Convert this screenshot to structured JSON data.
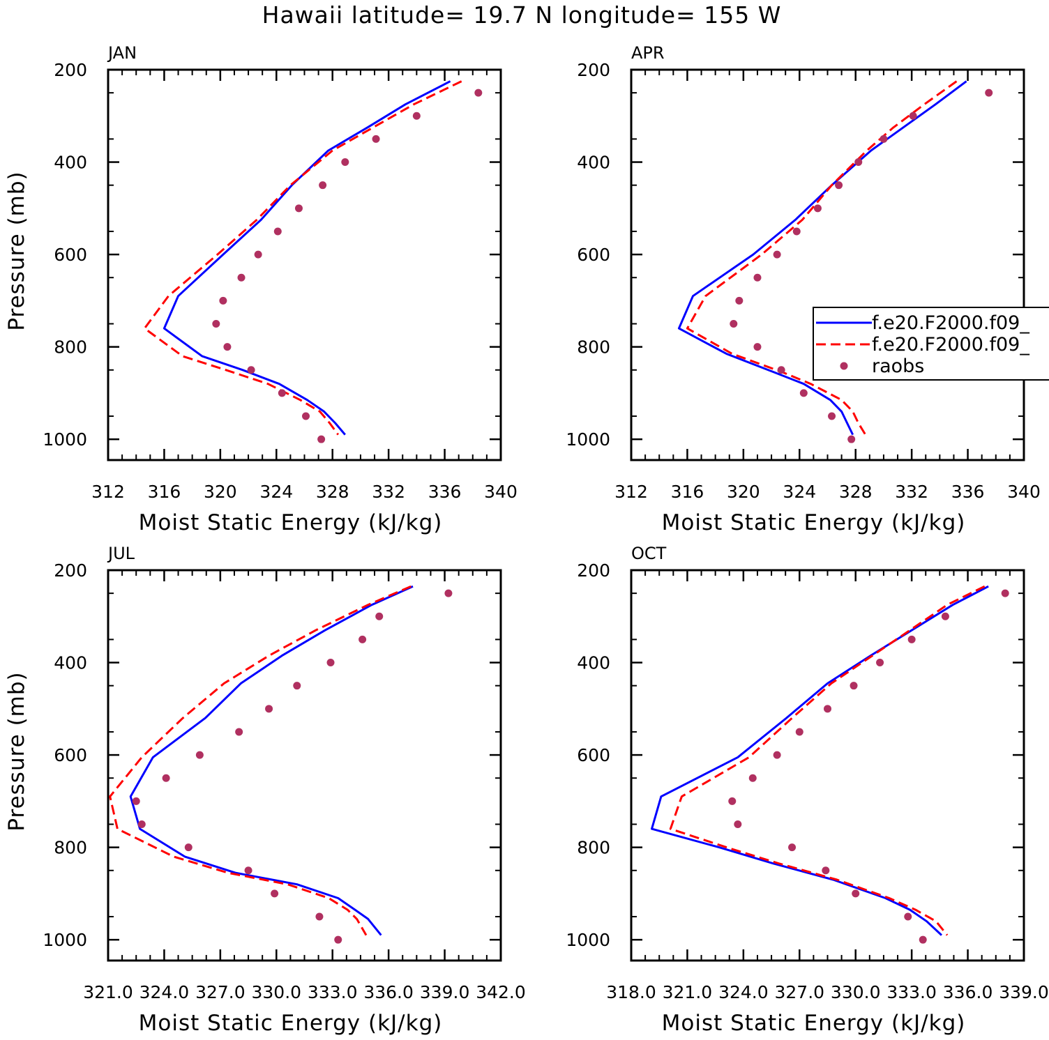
{
  "title": "Hawaii  latitude= 19.7 N longitude= 155 W",
  "legend": {
    "entries": [
      {
        "label": "f.e20.F2000.f09_",
        "style": "solid",
        "color": "#0000ff"
      },
      {
        "label": "f.e20.F2000.f09_",
        "style": "dashed",
        "color": "#ff0000"
      },
      {
        "label": "raobs",
        "style": "dot",
        "color": "#b03060"
      }
    ]
  },
  "chart_data": [
    {
      "type": "line",
      "panel": "JAN",
      "title": "JAN",
      "xlabel": "Moist Static Energy (kJ/kg)",
      "ylabel": "Pressure (mb)",
      "xlim": [
        312,
        340
      ],
      "ylim": [
        1000,
        200
      ],
      "xticks": [
        312,
        316,
        320,
        324,
        328,
        332,
        336,
        340
      ],
      "xtick_labels": [
        "312",
        "316",
        "320",
        "324",
        "328",
        "332",
        "336",
        "340"
      ],
      "yticks": [
        200,
        400,
        600,
        800,
        1000
      ],
      "ytick_labels": [
        "200",
        "400",
        "600",
        "800",
        "1000"
      ],
      "series": [
        {
          "name": "f.e20.F2000.f09_",
          "color": "#0000ff",
          "style": "solid",
          "x": [
            336.4,
            333.2,
            330.5,
            327.7,
            325.1,
            322.9,
            320.2,
            317.0,
            316.0,
            318.7,
            321.6,
            324.2,
            326.2,
            327.4,
            328.2,
            328.9
          ],
          "y": [
            225,
            275,
            325,
            375,
            450,
            525,
            600,
            690,
            760,
            820,
            850,
            880,
            915,
            940,
            965,
            990
          ]
        },
        {
          "name": "f.e20.F2000.f09_",
          "color": "#ff0000",
          "style": "dashed",
          "x": [
            337.2,
            333.8,
            330.9,
            328.0,
            325.0,
            322.6,
            319.8,
            316.3,
            314.6,
            317.3,
            320.4,
            323.4,
            325.7,
            327.1,
            327.8,
            328.4
          ],
          "y": [
            225,
            275,
            325,
            375,
            450,
            525,
            600,
            690,
            760,
            820,
            850,
            880,
            915,
            940,
            965,
            990
          ]
        },
        {
          "name": "raobs",
          "color": "#b03060",
          "style": "dots",
          "x": [
            338.4,
            334.0,
            331.1,
            328.9,
            327.3,
            325.6,
            324.1,
            322.7,
            321.5,
            320.2,
            319.7,
            320.5,
            322.2,
            324.4,
            326.1,
            327.2
          ],
          "y": [
            250,
            300,
            350,
            400,
            450,
            500,
            550,
            600,
            650,
            700,
            750,
            800,
            850,
            900,
            950,
            1000
          ]
        }
      ]
    },
    {
      "type": "line",
      "panel": "APR",
      "title": "APR",
      "xlabel": "Moist Static Energy (kJ/kg)",
      "ylabel": "",
      "xlim": [
        312,
        340
      ],
      "ylim": [
        1000,
        200
      ],
      "xticks": [
        312,
        316,
        320,
        324,
        328,
        332,
        336,
        340
      ],
      "xtick_labels": [
        "312",
        "316",
        "320",
        "324",
        "328",
        "332",
        "336",
        "340"
      ],
      "yticks": [
        200,
        400,
        600,
        800,
        1000
      ],
      "ytick_labels": [
        "200",
        "400",
        "600",
        "800",
        "1000"
      ],
      "series": [
        {
          "name": "f.e20.F2000.f09_",
          "color": "#0000ff",
          "style": "solid",
          "x": [
            335.9,
            333.7,
            331.4,
            329.1,
            326.3,
            323.7,
            320.7,
            316.4,
            315.4,
            318.8,
            322.2,
            324.3,
            326.2,
            327.0,
            327.4,
            327.8
          ],
          "y": [
            225,
            275,
            325,
            375,
            450,
            525,
            600,
            690,
            760,
            815,
            855,
            880,
            915,
            940,
            965,
            990
          ]
        },
        {
          "name": "f.e20.F2000.f09_",
          "color": "#ff0000",
          "style": "dashed",
          "x": [
            335.2,
            332.9,
            330.7,
            328.8,
            326.3,
            324.2,
            321.3,
            317.3,
            316.0,
            319.2,
            322.8,
            324.8,
            327.0,
            327.8,
            328.2,
            328.7
          ],
          "y": [
            225,
            275,
            325,
            375,
            450,
            525,
            600,
            690,
            760,
            815,
            855,
            880,
            915,
            940,
            965,
            990
          ]
        },
        {
          "name": "raobs",
          "color": "#b03060",
          "style": "dots",
          "x": [
            337.5,
            332.1,
            330.0,
            328.2,
            326.8,
            325.3,
            323.8,
            322.4,
            321.0,
            319.7,
            319.3,
            321.0,
            322.7,
            324.3,
            326.3,
            327.7
          ],
          "y": [
            250,
            300,
            350,
            400,
            450,
            500,
            550,
            600,
            650,
            700,
            750,
            800,
            850,
            900,
            950,
            1000
          ]
        }
      ]
    },
    {
      "type": "line",
      "panel": "JUL",
      "title": "JUL",
      "xlabel": "Moist Static Energy (kJ/kg)",
      "ylabel": "Pressure (mb)",
      "xlim": [
        321.0,
        342.0
      ],
      "ylim": [
        1000,
        200
      ],
      "xticks": [
        321.0,
        324.0,
        327.0,
        330.0,
        333.0,
        336.0,
        339.0,
        342.0
      ],
      "xtick_labels": [
        "321.0",
        "324.0",
        "327.0",
        "330.0",
        "333.0",
        "336.0",
        "339.0",
        "342.0"
      ],
      "yticks": [
        200,
        400,
        600,
        800,
        1000
      ],
      "ytick_labels": [
        "200",
        "400",
        "600",
        "800",
        "1000"
      ],
      "series": [
        {
          "name": "f.e20.F2000.f09_",
          "color": "#0000ff",
          "style": "solid",
          "x": [
            337.3,
            335.1,
            332.6,
            330.3,
            328.1,
            326.2,
            323.4,
            322.2,
            322.7,
            325.1,
            327.8,
            331.1,
            333.3,
            334.2,
            334.9,
            335.6
          ],
          "y": [
            235,
            275,
            330,
            385,
            445,
            520,
            605,
            690,
            760,
            820,
            855,
            880,
            910,
            935,
            955,
            990
          ]
        },
        {
          "name": "f.e20.F2000.f09_",
          "color": "#ff0000",
          "style": "dashed",
          "x": [
            337.2,
            334.9,
            332.1,
            329.6,
            327.2,
            325.0,
            322.8,
            321.1,
            321.5,
            324.5,
            327.4,
            330.6,
            332.8,
            333.8,
            334.3,
            334.8
          ],
          "y": [
            235,
            275,
            330,
            385,
            445,
            520,
            605,
            690,
            760,
            820,
            855,
            880,
            910,
            935,
            955,
            990
          ]
        },
        {
          "name": "raobs",
          "color": "#b03060",
          "style": "dots",
          "x": [
            339.2,
            335.5,
            334.6,
            332.9,
            331.1,
            329.6,
            328.0,
            325.9,
            324.1,
            322.5,
            322.8,
            325.3,
            328.5,
            329.9,
            332.3,
            333.3
          ],
          "y": [
            250,
            300,
            350,
            400,
            450,
            500,
            550,
            600,
            650,
            700,
            750,
            800,
            850,
            900,
            950,
            1000
          ]
        }
      ]
    },
    {
      "type": "line",
      "panel": "OCT",
      "title": "OCT",
      "xlabel": "Moist Static Energy (kJ/kg)",
      "ylabel": "",
      "xlim": [
        318.0,
        339.0
      ],
      "ylim": [
        1000,
        200
      ],
      "xticks": [
        318.0,
        321.0,
        324.0,
        327.0,
        330.0,
        333.0,
        336.0,
        339.0
      ],
      "xtick_labels": [
        "318.0",
        "321.0",
        "324.0",
        "327.0",
        "330.0",
        "333.0",
        "336.0",
        "339.0"
      ],
      "yticks": [
        200,
        400,
        600,
        800,
        1000
      ],
      "ytick_labels": [
        "200",
        "400",
        "600",
        "800",
        "1000"
      ],
      "series": [
        {
          "name": "f.e20.F2000.f09_",
          "color": "#0000ff",
          "style": "solid",
          "x": [
            337.1,
            335.2,
            333.0,
            330.8,
            328.5,
            326.3,
            323.7,
            319.6,
            319.1,
            322.7,
            325.6,
            328.8,
            331.6,
            332.9,
            333.8,
            334.6
          ],
          "y": [
            235,
            275,
            330,
            385,
            445,
            520,
            605,
            690,
            760,
            800,
            835,
            870,
            910,
            935,
            960,
            990
          ]
        },
        {
          "name": "f.e20.F2000.f09_",
          "color": "#ff0000",
          "style": "dashed",
          "x": [
            336.9,
            334.9,
            332.9,
            330.9,
            328.7,
            326.6,
            324.3,
            320.7,
            320.1,
            323.1,
            325.9,
            329.0,
            331.8,
            333.2,
            334.3,
            334.9
          ],
          "y": [
            235,
            275,
            330,
            385,
            445,
            520,
            605,
            690,
            760,
            800,
            835,
            870,
            910,
            935,
            960,
            990
          ]
        },
        {
          "name": "raobs",
          "color": "#b03060",
          "style": "dots",
          "x": [
            338.0,
            334.8,
            333.0,
            331.3,
            329.9,
            328.5,
            327.0,
            325.8,
            324.5,
            323.4,
            323.7,
            326.6,
            328.4,
            330.0,
            332.8,
            333.6
          ],
          "y": [
            250,
            300,
            350,
            400,
            450,
            500,
            550,
            600,
            650,
            700,
            750,
            800,
            850,
            900,
            950,
            1000
          ]
        }
      ]
    }
  ]
}
